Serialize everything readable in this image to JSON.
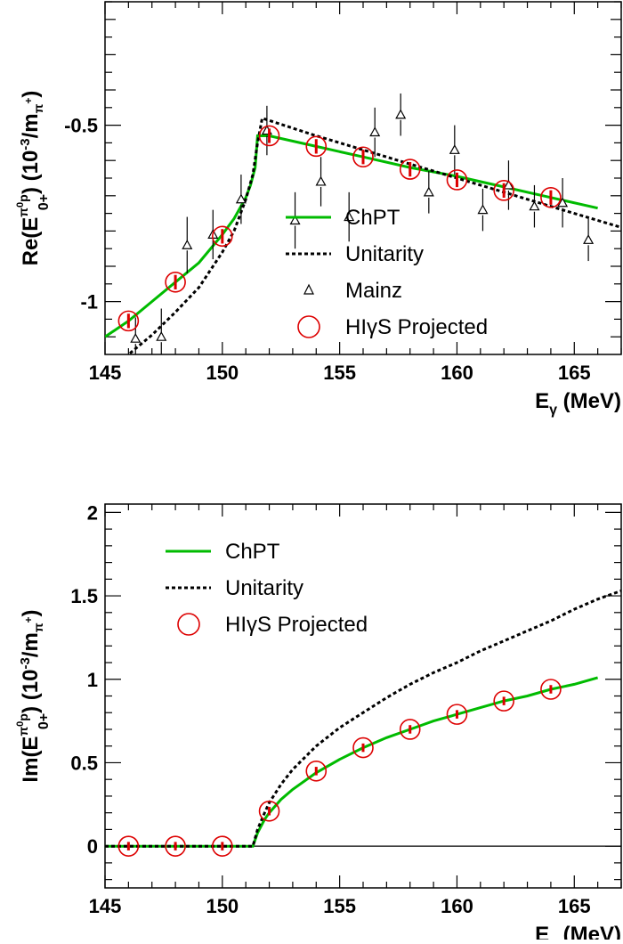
{
  "chart_data": [
    {
      "type": "line",
      "ylabel": "Re(E0+π0p) (10⁻³/mπ+)",
      "ylabel_parts": {
        "pre": "Re(E",
        "sup": "π",
        "sup2": "0",
        "sup3": "p",
        "sub": "0+",
        "post": ") (10",
        "exp": "-3",
        "unit_pre": "/m",
        "unit_sub": "π",
        "unit_sup": "+",
        "close": ")"
      },
      "xlabel_parts": {
        "pre": "E",
        "sub": "γ",
        "post": " (MeV)"
      },
      "xlim": [
        145,
        167
      ],
      "ylim": [
        -1.15,
        -0.15
      ],
      "xticks": [
        145,
        150,
        155,
        160,
        165
      ],
      "yticks": [
        {
          "v": -0.5,
          "label": "-0.5"
        },
        {
          "v": -1,
          "label": "-1"
        }
      ],
      "legend": {
        "position": "bottom-center",
        "entries": [
          {
            "kind": "solid",
            "label": "ChPT",
            "color": "#00bb00"
          },
          {
            "kind": "dashed",
            "label": "Unitarity",
            "color": "#000000"
          },
          {
            "kind": "triangle",
            "label": "Mainz",
            "color": "#000000"
          },
          {
            "kind": "circle",
            "label": "HIγS Projected",
            "color": "#dd0000"
          }
        ]
      },
      "series": [
        {
          "name": "ChPT",
          "color": "#00bb00",
          "style": "solid",
          "x": [
            145,
            146,
            147,
            148,
            149,
            150,
            150.5,
            151,
            151.2,
            151.4,
            151.5,
            152,
            154,
            156,
            158,
            160,
            162,
            164,
            166
          ],
          "y": [
            -1.1,
            -1.055,
            -1.0,
            -0.945,
            -0.89,
            -0.81,
            -0.765,
            -0.705,
            -0.67,
            -0.62,
            -0.53,
            -0.53,
            -0.56,
            -0.59,
            -0.62,
            -0.645,
            -0.675,
            -0.705,
            -0.735
          ]
        },
        {
          "name": "Unitarity",
          "color": "#000000",
          "style": "dashed",
          "x": [
            145,
            146,
            147,
            148,
            149,
            150,
            150.5,
            151,
            151.3,
            151.5,
            151.7,
            154,
            156,
            158,
            160,
            162,
            164,
            166,
            167
          ],
          "y": [
            -1.2,
            -1.15,
            -1.095,
            -1.03,
            -0.96,
            -0.86,
            -0.8,
            -0.71,
            -0.64,
            -0.55,
            -0.48,
            -0.53,
            -0.57,
            -0.61,
            -0.65,
            -0.69,
            -0.73,
            -0.77,
            -0.79
          ]
        },
        {
          "name": "Mainz",
          "color": "#000000",
          "style": "triangle",
          "x": [
            146.3,
            147.4,
            148.5,
            149.6,
            150.8,
            151.9,
            153.1,
            154.2,
            155.4,
            156.5,
            157.6,
            158.8,
            159.9,
            161.1,
            162.2,
            163.3,
            164.5,
            165.6
          ],
          "y": [
            -1.105,
            -1.1,
            -0.84,
            -0.81,
            -0.71,
            -0.515,
            -0.77,
            -0.66,
            -0.76,
            -0.52,
            -0.47,
            -0.69,
            -0.57,
            -0.74,
            -0.67,
            -0.73,
            -0.72,
            -0.825
          ],
          "err": [
            0.06,
            0.08,
            0.08,
            0.07,
            0.07,
            0.07,
            0.08,
            0.07,
            0.07,
            0.07,
            0.06,
            0.06,
            0.07,
            0.06,
            0.07,
            0.06,
            0.07,
            0.06
          ]
        },
        {
          "name": "HIγS Projected",
          "color": "#dd0000",
          "style": "circle",
          "x": [
            146,
            148,
            150,
            152,
            154,
            156,
            158,
            160,
            162,
            164
          ],
          "y": [
            -1.055,
            -0.945,
            -0.815,
            -0.53,
            -0.56,
            -0.59,
            -0.625,
            -0.655,
            -0.685,
            -0.705
          ],
          "err": [
            0.018,
            0.018,
            0.018,
            0.018,
            0.018,
            0.018,
            0.018,
            0.018,
            0.018,
            0.018
          ]
        }
      ]
    },
    {
      "type": "line",
      "ylabel_parts": {
        "pre": "Im(E",
        "sup": "π",
        "sup2": "0",
        "sup3": "p",
        "sub": "0+",
        "post": ") (10",
        "exp": "-3",
        "unit_pre": "/m",
        "unit_sub": "π",
        "unit_sup": "+",
        "close": ")"
      },
      "xlabel_parts": {
        "pre": "E",
        "sub": "γ",
        "post": " (MeV)"
      },
      "xlim": [
        145,
        167
      ],
      "ylim": [
        -0.25,
        2.05
      ],
      "xticks": [
        145,
        150,
        155,
        160,
        165
      ],
      "yticks": [
        {
          "v": 0,
          "label": "0"
        },
        {
          "v": 0.5,
          "label": "0.5"
        },
        {
          "v": 1,
          "label": "1"
        },
        {
          "v": 1.5,
          "label": "1.5"
        },
        {
          "v": 2,
          "label": "2"
        }
      ],
      "legend": {
        "position": "top-left",
        "entries": [
          {
            "kind": "solid",
            "label": "ChPT",
            "color": "#00bb00"
          },
          {
            "kind": "dashed",
            "label": "Unitarity",
            "color": "#000000"
          },
          {
            "kind": "circle",
            "label": "HIγS Projected",
            "color": "#dd0000"
          }
        ]
      },
      "series": [
        {
          "name": "ChPT",
          "color": "#00bb00",
          "style": "solid",
          "x": [
            145,
            151.3,
            151.5,
            151.8,
            152,
            152.5,
            153,
            154,
            155,
            156,
            157,
            158,
            159,
            160,
            161,
            162,
            163,
            164,
            165,
            166
          ],
          "y": [
            0,
            0,
            0.08,
            0.16,
            0.2,
            0.28,
            0.34,
            0.44,
            0.52,
            0.59,
            0.65,
            0.7,
            0.75,
            0.79,
            0.83,
            0.87,
            0.9,
            0.94,
            0.97,
            1.01
          ]
        },
        {
          "name": "Unitarity",
          "color": "#000000",
          "style": "dashed",
          "x": [
            145,
            151.3,
            151.5,
            151.8,
            152,
            152.5,
            153,
            154,
            155,
            156,
            157,
            158,
            159,
            160,
            161,
            162,
            163,
            164,
            165,
            166,
            167
          ],
          "y": [
            0,
            0,
            0.1,
            0.2,
            0.26,
            0.37,
            0.46,
            0.6,
            0.71,
            0.8,
            0.89,
            0.97,
            1.04,
            1.1,
            1.17,
            1.23,
            1.29,
            1.35,
            1.42,
            1.48,
            1.53
          ]
        },
        {
          "name": "HIγS Projected",
          "color": "#dd0000",
          "style": "circle",
          "x": [
            146,
            148,
            150,
            152,
            154,
            156,
            158,
            160,
            162,
            164
          ],
          "y": [
            0,
            0,
            0,
            0.21,
            0.45,
            0.59,
            0.7,
            0.79,
            0.87,
            0.94
          ],
          "err": [
            0.02,
            0.02,
            0.02,
            0.02,
            0.02,
            0.02,
            0.02,
            0.02,
            0.02,
            0.02
          ]
        }
      ]
    }
  ]
}
